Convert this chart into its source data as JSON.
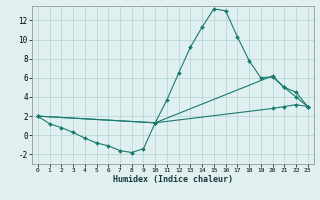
{
  "xlabel": "Humidex (Indice chaleur)",
  "background_color": "#e0f0f0",
  "grid_color": "#b8d8d8",
  "line_color": "#1a7a6e",
  "xlim": [
    -0.5,
    23.5
  ],
  "ylim": [
    -3.0,
    13.5
  ],
  "yticks": [
    -2,
    0,
    2,
    4,
    6,
    8,
    10,
    12
  ],
  "xticks": [
    0,
    1,
    2,
    3,
    4,
    5,
    6,
    7,
    8,
    9,
    10,
    11,
    12,
    13,
    14,
    15,
    16,
    17,
    18,
    19,
    20,
    21,
    22,
    23
  ],
  "line1_x": [
    0,
    1,
    2,
    3,
    4,
    5,
    6,
    7,
    8,
    9,
    10,
    11,
    12,
    13,
    14,
    15,
    16,
    17,
    18,
    19,
    20,
    21,
    22,
    23
  ],
  "line1_y": [
    2.0,
    1.2,
    0.8,
    0.3,
    -0.3,
    -0.8,
    -1.1,
    -1.6,
    -1.8,
    -1.4,
    1.3,
    3.7,
    6.5,
    9.2,
    11.3,
    13.2,
    13.0,
    10.3,
    7.8,
    6.0,
    6.1,
    5.0,
    4.0,
    3.0
  ],
  "line2_x": [
    0,
    10,
    20,
    21,
    22,
    23
  ],
  "line2_y": [
    2.0,
    1.3,
    6.2,
    5.0,
    4.5,
    3.0
  ],
  "line3_x": [
    0,
    10,
    20,
    21,
    22,
    23
  ],
  "line3_y": [
    2.0,
    1.3,
    2.8,
    3.0,
    3.2,
    3.0
  ]
}
